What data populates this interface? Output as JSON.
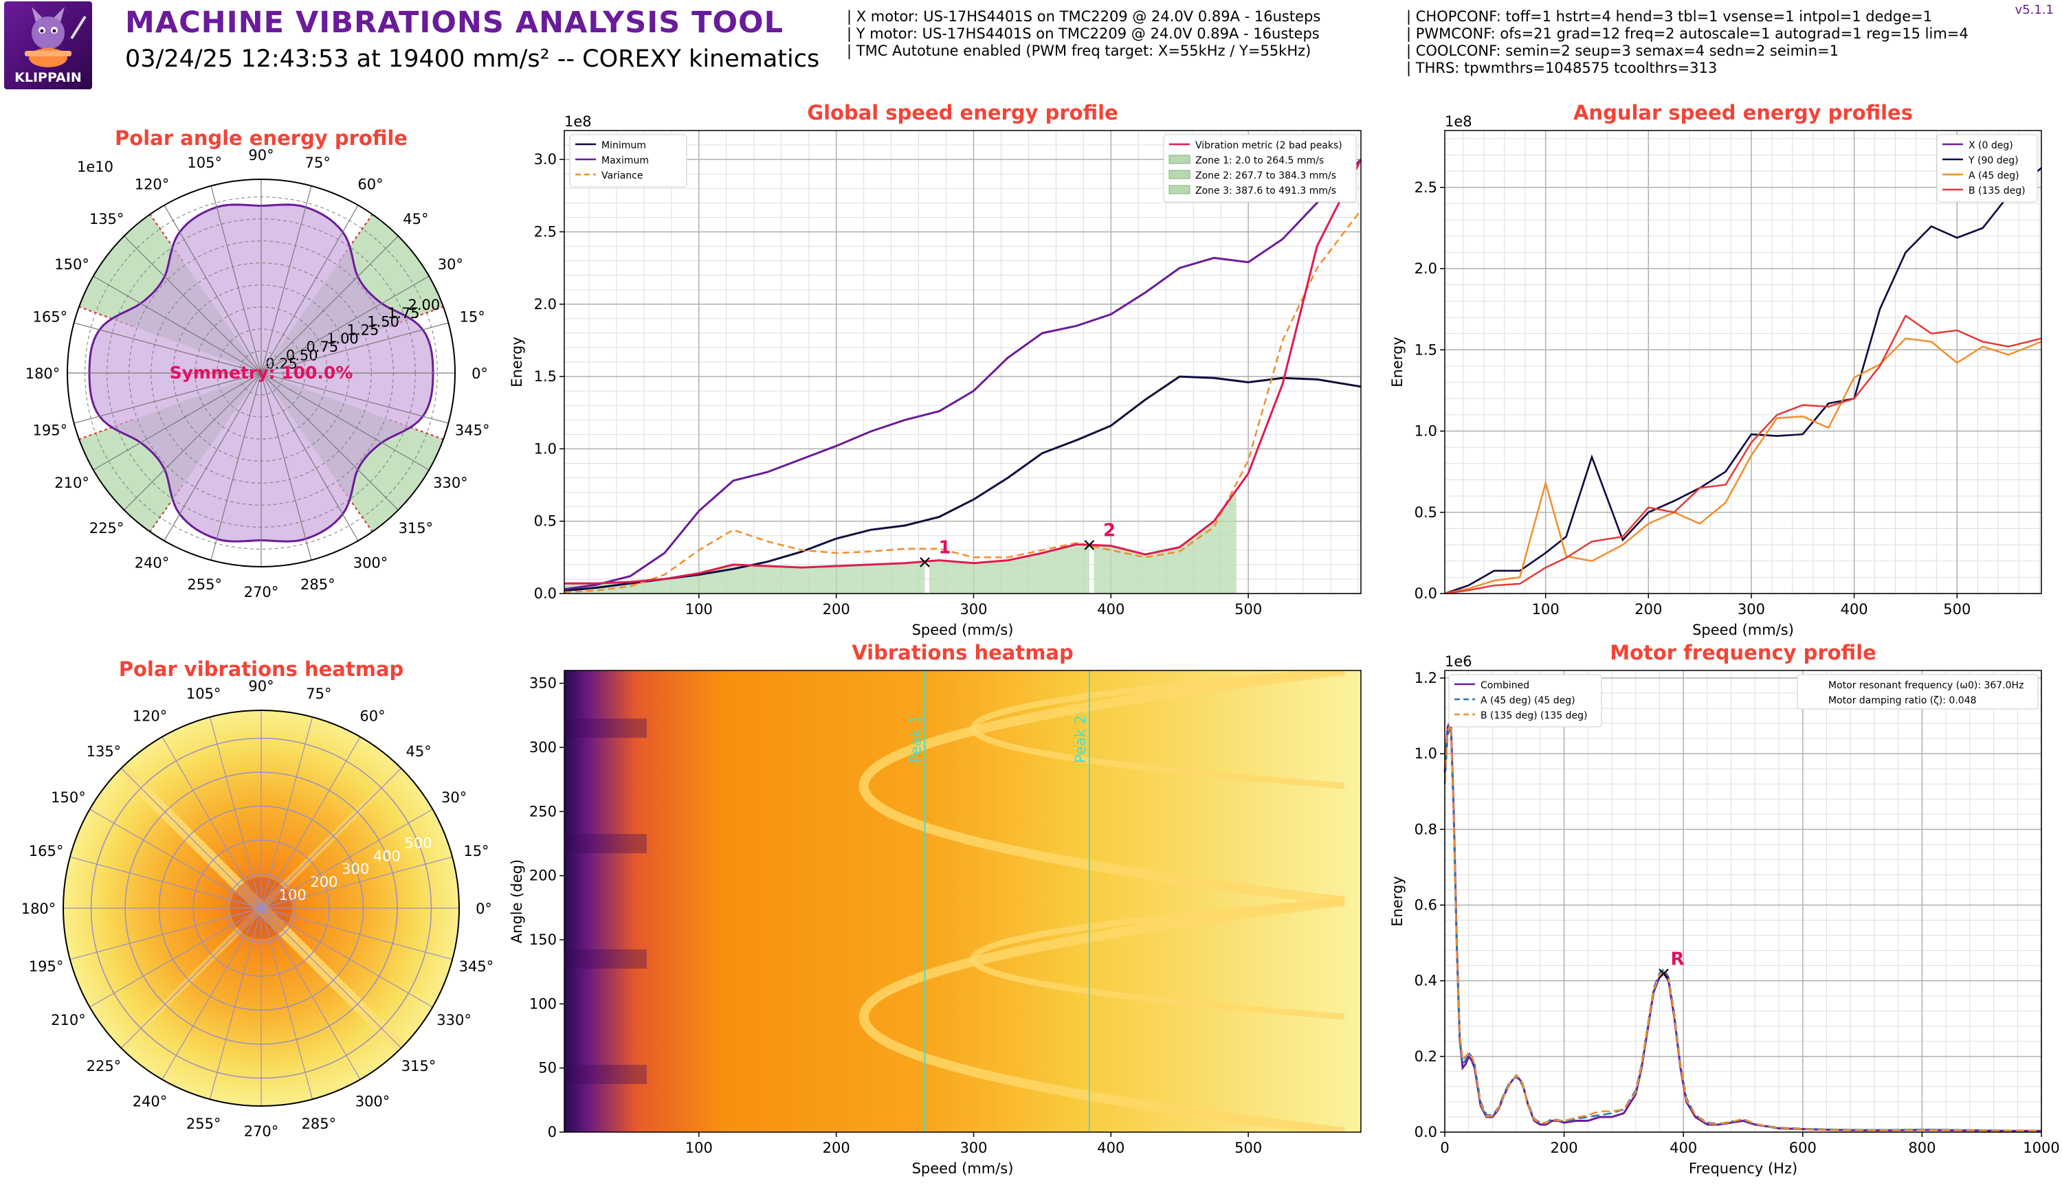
{
  "header": {
    "logo_text": "KLIPPAIN",
    "title": "MACHINE VIBRATIONS ANALYSIS TOOL",
    "subtitle": "03/24/25 12:43:53 at 19400 mm/s² -- COREXY kinematics",
    "motors_info": [
      "| X motor: US-17HS4401S on TMC2209 @ 24.0V 0.89A - 16usteps",
      "| Y motor: US-17HS4401S on TMC2209 @ 24.0V 0.89A - 16usteps",
      "| TMC Autotune enabled (PWM freq target: X=55kHz / Y=55kHz)"
    ],
    "tmc_info": [
      "| CHOPCONF: toff=1 hstrt=4 hend=3 tbl=1 vsense=1 intpol=1 dedge=1",
      "| PWMCONF: ofs=21 grad=12 freq=2 autoscale=1 autograd=1 reg=15 lim=4",
      "| COOLCONF: semin=2 seup=3 semax=4 sedn=2 seimin=1",
      "| THRS: tpwmthrs=1048575 tcoolthrs=313"
    ],
    "version": "v5.1.1"
  },
  "colors": {
    "title_red": "#f44336",
    "purple": "#6a1b9a",
    "navy": "#0d0d3d",
    "orange": "#f28e2b",
    "crimson": "#e01a4f",
    "zone_green": "#b7d9b0",
    "peak_pink": "#e0115f",
    "cyan": "#40e0d0",
    "blue_dash": "#1f77b4"
  },
  "chart_data": [
    {
      "id": "polar_energy",
      "type": "polar-area",
      "title": "Polar angle energy profile",
      "angle_ticks": [
        "0°",
        "15°",
        "30°",
        "45°",
        "60°",
        "75°",
        "90°",
        "105°",
        "120°",
        "135°",
        "150°",
        "165°",
        "180°",
        "195°",
        "210°",
        "225°",
        "240°",
        "255°",
        "270°",
        "285°",
        "300°",
        "315°",
        "330°",
        "345°"
      ],
      "radial_ticks": [
        "0.25",
        "0.50",
        "0.75",
        "1.00",
        "1.25",
        "1.50",
        "1.75",
        "2.00"
      ],
      "radial_range": [
        0,
        2.2
      ],
      "radial_scale_label": "1e10",
      "annotation": "Symmetry: 100.0%",
      "angles_deg": [
        0,
        15,
        30,
        45,
        60,
        75,
        90,
        105,
        120,
        135,
        150,
        165,
        180,
        195,
        210,
        225,
        240,
        255,
        270,
        285,
        300,
        315,
        330,
        345,
        360
      ],
      "energy": [
        1.95,
        1.9,
        1.58,
        1.55,
        1.85,
        1.95,
        1.9,
        1.95,
        1.85,
        1.55,
        1.58,
        1.9,
        1.95,
        1.9,
        1.58,
        1.55,
        1.85,
        1.95,
        1.9,
        1.95,
        1.85,
        1.55,
        1.58,
        1.9,
        1.95
      ],
      "low_energy_zones_deg": [
        [
          20,
          55
        ],
        [
          125,
          160
        ],
        [
          200,
          235
        ],
        [
          305,
          340
        ]
      ]
    },
    {
      "id": "global_speed",
      "type": "line",
      "title": "Global speed energy profile",
      "xlabel": "Speed (mm/s)",
      "ylabel": "Energy",
      "y_scale_label": "1e8",
      "xlim": [
        2,
        582
      ],
      "ylim": [
        0,
        3.2
      ],
      "xticks": [
        100,
        200,
        300,
        400,
        500
      ],
      "yticks": [
        0.0,
        0.5,
        1.0,
        1.5,
        2.0,
        2.5,
        3.0
      ],
      "legend_left": [
        "Minimum",
        "Maximum",
        "Variance"
      ],
      "legend_right": [
        "Vibration metric (2 bad peaks)",
        "Zone 1: 2.0 to 264.5 mm/s",
        "Zone 2: 267.7 to 384.3 mm/s",
        "Zone 3: 387.6 to 491.3 mm/s"
      ],
      "x": [
        2,
        25,
        50,
        75,
        100,
        125,
        150,
        175,
        200,
        225,
        250,
        275,
        300,
        325,
        350,
        375,
        400,
        425,
        450,
        475,
        500,
        525,
        550,
        582
      ],
      "series": [
        {
          "name": "Minimum",
          "values": [
            0.02,
            0.04,
            0.07,
            0.1,
            0.13,
            0.17,
            0.22,
            0.29,
            0.38,
            0.44,
            0.47,
            0.53,
            0.65,
            0.8,
            0.97,
            1.06,
            1.16,
            1.34,
            1.5,
            1.49,
            1.46,
            1.49,
            1.48,
            1.43
          ]
        },
        {
          "name": "Maximum",
          "values": [
            0.03,
            0.06,
            0.12,
            0.28,
            0.57,
            0.78,
            0.84,
            0.93,
            1.02,
            1.12,
            1.2,
            1.26,
            1.4,
            1.63,
            1.8,
            1.85,
            1.93,
            2.08,
            2.25,
            2.32,
            2.29,
            2.45,
            2.7,
            3.0
          ]
        },
        {
          "name": "Variance",
          "values": [
            0.01,
            0.02,
            0.05,
            0.13,
            0.3,
            0.44,
            0.36,
            0.3,
            0.28,
            0.29,
            0.31,
            0.31,
            0.25,
            0.25,
            0.3,
            0.35,
            0.3,
            0.25,
            0.29,
            0.46,
            0.92,
            1.75,
            2.25,
            2.65
          ]
        },
        {
          "name": "Vibration metric (2 bad peaks)",
          "values": [
            0.07,
            0.07,
            0.08,
            0.1,
            0.14,
            0.2,
            0.19,
            0.18,
            0.19,
            0.2,
            0.21,
            0.23,
            0.21,
            0.23,
            0.28,
            0.34,
            0.33,
            0.27,
            0.32,
            0.5,
            0.83,
            1.45,
            2.4,
            3.0
          ]
        }
      ],
      "zones": [
        [
          2.0,
          264.5
        ],
        [
          267.7,
          384.3
        ],
        [
          387.6,
          491.3
        ]
      ],
      "peaks": [
        {
          "label": "1",
          "x": 264.5,
          "y": 0.22
        },
        {
          "label": "2",
          "x": 384.3,
          "y": 0.34
        }
      ]
    },
    {
      "id": "angular_speed",
      "type": "line",
      "title": "Angular speed energy profiles",
      "xlabel": "Speed (mm/s)",
      "ylabel": "Energy",
      "y_scale_label": "1e8",
      "xlim": [
        2,
        582
      ],
      "ylim": [
        0,
        2.85
      ],
      "xticks": [
        100,
        200,
        300,
        400,
        500
      ],
      "yticks": [
        0.0,
        0.5,
        1.0,
        1.5,
        2.0,
        2.5
      ],
      "legend": [
        "X (0 deg)",
        "Y (90 deg)",
        "A (45 deg)",
        "B (135 deg)"
      ],
      "x": [
        2,
        25,
        50,
        75,
        100,
        120,
        145,
        175,
        200,
        225,
        250,
        275,
        300,
        325,
        350,
        375,
        400,
        425,
        450,
        475,
        500,
        525,
        550,
        582
      ],
      "series": [
        {
          "name": "X (0 deg)",
          "color": "#6a1b9a",
          "values": [
            0.0,
            0.05,
            0.14,
            0.14,
            0.25,
            0.35,
            0.84,
            0.33,
            0.5,
            0.57,
            0.65,
            0.75,
            0.98,
            0.97,
            0.98,
            1.17,
            1.2,
            1.75,
            2.1,
            2.26,
            2.19,
            2.25,
            2.45,
            2.62
          ]
        },
        {
          "name": "Y (90 deg)",
          "color": "#0d0d3d",
          "values": [
            0.0,
            0.05,
            0.14,
            0.14,
            0.25,
            0.35,
            0.84,
            0.33,
            0.5,
            0.57,
            0.65,
            0.75,
            0.98,
            0.97,
            0.98,
            1.17,
            1.2,
            1.75,
            2.1,
            2.26,
            2.19,
            2.25,
            2.45,
            2.62
          ]
        },
        {
          "name": "A (45 deg)",
          "color": "#f28e2b",
          "values": [
            0.0,
            0.03,
            0.08,
            0.1,
            0.68,
            0.23,
            0.2,
            0.3,
            0.43,
            0.5,
            0.43,
            0.56,
            0.85,
            1.08,
            1.09,
            1.02,
            1.33,
            1.41,
            1.57,
            1.55,
            1.42,
            1.52,
            1.47,
            1.55
          ]
        },
        {
          "name": "B (135 deg)",
          "color": "#e53935",
          "values": [
            0.0,
            0.02,
            0.05,
            0.06,
            0.16,
            0.22,
            0.32,
            0.35,
            0.53,
            0.5,
            0.65,
            0.67,
            0.93,
            1.1,
            1.16,
            1.15,
            1.2,
            1.4,
            1.71,
            1.6,
            1.62,
            1.55,
            1.52,
            1.57
          ]
        }
      ]
    },
    {
      "id": "polar_heatmap",
      "type": "heatmap",
      "title": "Polar vibrations heatmap",
      "angle_ticks": [
        "0°",
        "15°",
        "30°",
        "45°",
        "60°",
        "75°",
        "90°",
        "105°",
        "120°",
        "135°",
        "150°",
        "165°",
        "180°",
        "195°",
        "210°",
        "225°",
        "240°",
        "255°",
        "270°",
        "285°",
        "300°",
        "315°",
        "330°",
        "345°"
      ],
      "radial_ticks": [
        "100",
        "200",
        "300",
        "400",
        "500"
      ],
      "radial_range": [
        0,
        582
      ]
    },
    {
      "id": "vibrations_heatmap",
      "type": "heatmap",
      "title": "Vibrations heatmap",
      "xlabel": "Speed (mm/s)",
      "ylabel": "Angle (deg)",
      "xlim": [
        2,
        582
      ],
      "ylim": [
        0,
        360
      ],
      "xticks": [
        100,
        200,
        300,
        400,
        500
      ],
      "yticks": [
        0,
        50,
        100,
        150,
        200,
        250,
        300,
        350
      ],
      "peak_lines": [
        {
          "label": "Peak 1",
          "x": 264.5
        },
        {
          "label": "Peak 2",
          "x": 384.3
        }
      ]
    },
    {
      "id": "motor_frequency",
      "type": "line",
      "title": "Motor frequency profile",
      "xlabel": "Frequency (Hz)",
      "ylabel": "Energy",
      "y_scale_label": "1e6",
      "xlim": [
        0,
        1000
      ],
      "ylim": [
        0,
        1.22
      ],
      "xticks": [
        0,
        200,
        400,
        600,
        800,
        1000
      ],
      "yticks": [
        0.0,
        0.2,
        0.4,
        0.6,
        0.8,
        1.0,
        1.2
      ],
      "legend": [
        "Combined",
        "A (45 deg) (45 deg)",
        "B (135 deg) (135 deg)"
      ],
      "info_lines": [
        "Motor resonant frequency (ω0): 367.0Hz",
        "Motor damping ratio (ζ): 0.048"
      ],
      "x": [
        0,
        5,
        10,
        15,
        20,
        25,
        30,
        35,
        40,
        45,
        50,
        60,
        70,
        80,
        90,
        100,
        110,
        120,
        130,
        140,
        150,
        160,
        170,
        180,
        190,
        200,
        220,
        240,
        260,
        280,
        300,
        320,
        330,
        340,
        350,
        360,
        367,
        375,
        385,
        395,
        405,
        420,
        440,
        460,
        480,
        500,
        520,
        540,
        560,
        600,
        650,
        700,
        750,
        800,
        850,
        900,
        950,
        1000
      ],
      "series": [
        {
          "name": "Combined",
          "color": "#6a1b9a",
          "values": [
            0.95,
            1.07,
            1.09,
            0.85,
            0.5,
            0.25,
            0.17,
            0.18,
            0.2,
            0.19,
            0.17,
            0.07,
            0.04,
            0.04,
            0.06,
            0.1,
            0.13,
            0.15,
            0.13,
            0.07,
            0.03,
            0.02,
            0.02,
            0.03,
            0.03,
            0.025,
            0.03,
            0.03,
            0.04,
            0.04,
            0.05,
            0.1,
            0.17,
            0.27,
            0.37,
            0.41,
            0.42,
            0.4,
            0.3,
            0.17,
            0.08,
            0.04,
            0.02,
            0.02,
            0.025,
            0.03,
            0.02,
            0.015,
            0.01,
            0.008,
            0.006,
            0.005,
            0.005,
            0.006,
            0.005,
            0.004,
            0.003,
            0.003
          ]
        },
        {
          "name": "A (45 deg) (45 deg)",
          "color": "#1f77b4",
          "values": [
            0.92,
            1.05,
            1.07,
            0.83,
            0.48,
            0.24,
            0.18,
            0.19,
            0.21,
            0.2,
            0.18,
            0.08,
            0.045,
            0.045,
            0.065,
            0.105,
            0.135,
            0.145,
            0.125,
            0.075,
            0.035,
            0.025,
            0.025,
            0.035,
            0.032,
            0.028,
            0.035,
            0.04,
            0.045,
            0.05,
            0.06,
            0.11,
            0.18,
            0.28,
            0.38,
            0.42,
            0.43,
            0.41,
            0.31,
            0.18,
            0.09,
            0.045,
            0.025,
            0.022,
            0.028,
            0.033,
            0.022,
            0.016,
            0.012,
            0.009,
            0.007,
            0.006,
            0.006,
            0.007,
            0.006,
            0.005,
            0.004,
            0.004
          ]
        },
        {
          "name": "B (135 deg) (135 deg)",
          "color": "#f28e2b",
          "values": [
            0.93,
            1.06,
            1.08,
            0.84,
            0.49,
            0.26,
            0.19,
            0.2,
            0.21,
            0.2,
            0.18,
            0.075,
            0.042,
            0.043,
            0.062,
            0.1,
            0.13,
            0.15,
            0.13,
            0.07,
            0.033,
            0.024,
            0.024,
            0.033,
            0.031,
            0.03,
            0.038,
            0.045,
            0.055,
            0.055,
            0.06,
            0.105,
            0.175,
            0.275,
            0.375,
            0.415,
            0.425,
            0.405,
            0.305,
            0.175,
            0.085,
            0.045,
            0.023,
            0.021,
            0.027,
            0.035,
            0.022,
            0.015,
            0.011,
            0.008,
            0.006,
            0.005,
            0.005,
            0.006,
            0.005,
            0.004,
            0.003,
            0.003
          ]
        }
      ],
      "peak": {
        "label": "R",
        "x": 367,
        "y": 0.42
      }
    }
  ]
}
